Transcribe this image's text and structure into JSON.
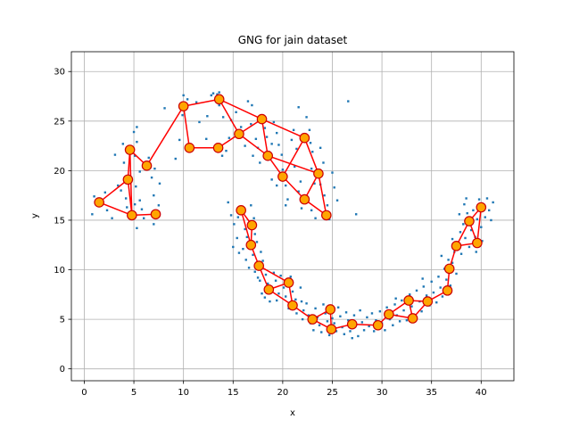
{
  "chart_data": {
    "type": "scatter",
    "title": "GNG for jain dataset",
    "xlabel": "x",
    "ylabel": "y",
    "xlim": [
      -1.3,
      43.3
    ],
    "ylim": [
      -1.2,
      32.0
    ],
    "xticks": [
      0,
      5,
      10,
      15,
      20,
      25,
      30,
      35,
      40
    ],
    "yticks": [
      0,
      5,
      10,
      15,
      20,
      25,
      30
    ],
    "grid": true,
    "colors": {
      "points": "#1f77b4",
      "edges": "#ff0000",
      "nodes_fill": "#ffa500",
      "nodes_edge": "#cc0000",
      "grid": "#b0b0b0"
    },
    "nodes": [
      {
        "id": "A1",
        "x": 1.5,
        "y": 16.8
      },
      {
        "id": "A2",
        "x": 4.6,
        "y": 22.1
      },
      {
        "id": "A3",
        "x": 4.4,
        "y": 19.1
      },
      {
        "id": "A4",
        "x": 6.3,
        "y": 20.5
      },
      {
        "id": "A5",
        "x": 4.8,
        "y": 15.5
      },
      {
        "id": "A6",
        "x": 7.2,
        "y": 15.6
      },
      {
        "id": "B1",
        "x": 10.0,
        "y": 26.5
      },
      {
        "id": "B2",
        "x": 13.6,
        "y": 27.2
      },
      {
        "id": "B3",
        "x": 10.6,
        "y": 22.3
      },
      {
        "id": "B4",
        "x": 13.5,
        "y": 22.3
      },
      {
        "id": "B5",
        "x": 15.6,
        "y": 23.7
      },
      {
        "id": "B6",
        "x": 17.9,
        "y": 25.2
      },
      {
        "id": "B7",
        "x": 22.2,
        "y": 23.3
      },
      {
        "id": "B8",
        "x": 18.5,
        "y": 21.5
      },
      {
        "id": "B9",
        "x": 20.0,
        "y": 19.4
      },
      {
        "id": "B10",
        "x": 23.6,
        "y": 19.7
      },
      {
        "id": "B11",
        "x": 22.2,
        "y": 17.1
      },
      {
        "id": "B12",
        "x": 24.4,
        "y": 15.5
      },
      {
        "id": "C1",
        "x": 15.8,
        "y": 16.0
      },
      {
        "id": "C2",
        "x": 16.9,
        "y": 14.5
      },
      {
        "id": "C3",
        "x": 16.8,
        "y": 12.5
      },
      {
        "id": "C4",
        "x": 17.6,
        "y": 10.4
      },
      {
        "id": "C5",
        "x": 18.6,
        "y": 8.0
      },
      {
        "id": "C6",
        "x": 20.6,
        "y": 8.7
      },
      {
        "id": "C7",
        "x": 21.0,
        "y": 6.4
      },
      {
        "id": "C8",
        "x": 23.0,
        "y": 5.0
      },
      {
        "id": "C9",
        "x": 24.8,
        "y": 6.0
      },
      {
        "id": "C10",
        "x": 24.9,
        "y": 4.0
      },
      {
        "id": "C11",
        "x": 27.0,
        "y": 4.5
      },
      {
        "id": "C12",
        "x": 29.6,
        "y": 4.4
      },
      {
        "id": "C13",
        "x": 30.7,
        "y": 5.5
      },
      {
        "id": "C14",
        "x": 32.7,
        "y": 6.9
      },
      {
        "id": "C15",
        "x": 33.1,
        "y": 5.1
      },
      {
        "id": "C16",
        "x": 34.6,
        "y": 6.8
      },
      {
        "id": "C17",
        "x": 36.6,
        "y": 7.9
      },
      {
        "id": "C18",
        "x": 36.8,
        "y": 10.1
      },
      {
        "id": "C19",
        "x": 37.5,
        "y": 12.4
      },
      {
        "id": "C20",
        "x": 38.8,
        "y": 14.9
      },
      {
        "id": "C21",
        "x": 39.6,
        "y": 12.7
      },
      {
        "id": "C22",
        "x": 40.0,
        "y": 16.3
      }
    ],
    "edges": [
      [
        "A1",
        "A3"
      ],
      [
        "A1",
        "A5"
      ],
      [
        "A3",
        "A2"
      ],
      [
        "A3",
        "A5"
      ],
      [
        "A2",
        "A4"
      ],
      [
        "A2",
        "A5"
      ],
      [
        "A5",
        "A6"
      ],
      [
        "A4",
        "B1"
      ],
      [
        "B1",
        "B3"
      ],
      [
        "B1",
        "B2"
      ],
      [
        "B3",
        "B4"
      ],
      [
        "B4",
        "B5"
      ],
      [
        "B2",
        "B5"
      ],
      [
        "B2",
        "B6"
      ],
      [
        "B5",
        "B6"
      ],
      [
        "B5",
        "B8"
      ],
      [
        "B6",
        "B8"
      ],
      [
        "B6",
        "B7"
      ],
      [
        "B8",
        "B9"
      ],
      [
        "B8",
        "B10"
      ],
      [
        "B7",
        "B9"
      ],
      [
        "B7",
        "B10"
      ],
      [
        "B9",
        "B11"
      ],
      [
        "B10",
        "B11"
      ],
      [
        "B10",
        "B12"
      ],
      [
        "B11",
        "B12"
      ],
      [
        "C1",
        "C2"
      ],
      [
        "C1",
        "C3"
      ],
      [
        "C2",
        "C3"
      ],
      [
        "C3",
        "C4"
      ],
      [
        "C4",
        "C5"
      ],
      [
        "C4",
        "C6"
      ],
      [
        "C5",
        "C6"
      ],
      [
        "C5",
        "C7"
      ],
      [
        "C6",
        "C7"
      ],
      [
        "C7",
        "C8"
      ],
      [
        "C8",
        "C9"
      ],
      [
        "C8",
        "C10"
      ],
      [
        "C9",
        "C10"
      ],
      [
        "C10",
        "C11"
      ],
      [
        "C11",
        "C12"
      ],
      [
        "C12",
        "C13"
      ],
      [
        "C13",
        "C14"
      ],
      [
        "C13",
        "C15"
      ],
      [
        "C14",
        "C15"
      ],
      [
        "C14",
        "C16"
      ],
      [
        "C15",
        "C16"
      ],
      [
        "C16",
        "C17"
      ],
      [
        "C17",
        "C18"
      ],
      [
        "C18",
        "C19"
      ],
      [
        "C19",
        "C20"
      ],
      [
        "C19",
        "C21"
      ],
      [
        "C20",
        "C21"
      ],
      [
        "C20",
        "C22"
      ],
      [
        "C21",
        "C22"
      ]
    ],
    "points": [
      [
        1.0,
        17.4
      ],
      [
        0.8,
        15.6
      ],
      [
        2.3,
        16.0
      ],
      [
        2.1,
        17.8
      ],
      [
        2.8,
        15.2
      ],
      [
        3.4,
        18.5
      ],
      [
        3.1,
        21.6
      ],
      [
        3.9,
        22.7
      ],
      [
        4.0,
        20.8
      ],
      [
        3.7,
        18.0
      ],
      [
        4.2,
        17.2
      ],
      [
        4.3,
        16.3
      ],
      [
        5.0,
        23.9
      ],
      [
        5.3,
        24.4
      ],
      [
        5.3,
        22.9
      ],
      [
        5.1,
        21.5
      ],
      [
        5.6,
        19.9
      ],
      [
        5.2,
        18.4
      ],
      [
        5.6,
        17.0
      ],
      [
        5.8,
        16.1
      ],
      [
        5.1,
        16.6
      ],
      [
        5.3,
        14.2
      ],
      [
        6.0,
        15.2
      ],
      [
        6.5,
        21.3
      ],
      [
        6.8,
        19.3
      ],
      [
        7.0,
        17.5
      ],
      [
        7.0,
        14.6
      ],
      [
        7.5,
        16.5
      ],
      [
        7.1,
        20.2
      ],
      [
        7.6,
        18.7
      ],
      [
        8.1,
        26.3
      ],
      [
        9.2,
        21.2
      ],
      [
        9.6,
        23.1
      ],
      [
        9.9,
        25.6
      ],
      [
        10.0,
        27.6
      ],
      [
        10.4,
        27.2
      ],
      [
        11.6,
        24.9
      ],
      [
        11.3,
        26.9
      ],
      [
        12.4,
        25.5
      ],
      [
        12.3,
        23.2
      ],
      [
        12.8,
        27.6
      ],
      [
        13.0,
        27.8
      ],
      [
        13.4,
        27.7
      ],
      [
        13.6,
        27.9
      ],
      [
        13.6,
        26.6
      ],
      [
        14.0,
        25.4
      ],
      [
        14.3,
        22.0
      ],
      [
        13.9,
        21.5
      ],
      [
        14.8,
        25.1
      ],
      [
        14.6,
        23.3
      ],
      [
        15.3,
        25.9
      ],
      [
        15.8,
        24.4
      ],
      [
        16.2,
        22.5
      ],
      [
        16.5,
        27.0
      ],
      [
        16.9,
        26.6
      ],
      [
        16.8,
        24.7
      ],
      [
        17.3,
        23.2
      ],
      [
        17.5,
        22.3
      ],
      [
        17.0,
        21.5
      ],
      [
        17.7,
        20.8
      ],
      [
        18.2,
        24.3
      ],
      [
        18.4,
        23.4
      ],
      [
        18.9,
        22.7
      ],
      [
        19.1,
        24.9
      ],
      [
        19.4,
        23.8
      ],
      [
        19.6,
        22.6
      ],
      [
        19.9,
        21.6
      ],
      [
        18.9,
        19.1
      ],
      [
        19.4,
        18.5
      ],
      [
        20.0,
        20.1
      ],
      [
        20.3,
        18.5
      ],
      [
        20.5,
        17.1
      ],
      [
        20.3,
        16.5
      ],
      [
        20.9,
        23.1
      ],
      [
        21.1,
        24.1
      ],
      [
        21.4,
        22.2
      ],
      [
        21.2,
        20.4
      ],
      [
        21.8,
        18.9
      ],
      [
        21.6,
        17.9
      ],
      [
        21.9,
        16.2
      ],
      [
        22.4,
        25.4
      ],
      [
        22.7,
        24.1
      ],
      [
        22.8,
        22.8
      ],
      [
        23.0,
        21.9
      ],
      [
        22.9,
        20.2
      ],
      [
        23.2,
        18.7
      ],
      [
        22.9,
        16.0
      ],
      [
        23.3,
        15.2
      ],
      [
        23.8,
        22.3
      ],
      [
        24.1,
        20.8
      ],
      [
        23.8,
        18.6
      ],
      [
        24.2,
        17.5
      ],
      [
        24.5,
        16.5
      ],
      [
        24.7,
        15.1
      ],
      [
        25.0,
        19.8
      ],
      [
        25.2,
        18.3
      ],
      [
        25.5,
        17.0
      ],
      [
        27.4,
        15.6
      ],
      [
        26.6,
        27.0
      ],
      [
        21.6,
        26.4
      ],
      [
        14.5,
        16.8
      ],
      [
        14.8,
        15.5
      ],
      [
        15.1,
        14.6
      ],
      [
        15.4,
        13.2
      ],
      [
        15.0,
        12.3
      ],
      [
        15.6,
        11.7
      ],
      [
        15.5,
        15.3
      ],
      [
        16.1,
        15.8
      ],
      [
        16.2,
        14.1
      ],
      [
        16.4,
        13.3
      ],
      [
        16.0,
        12.1
      ],
      [
        16.3,
        11.0
      ],
      [
        16.6,
        10.2
      ],
      [
        16.8,
        16.5
      ],
      [
        17.1,
        15.2
      ],
      [
        17.2,
        13.6
      ],
      [
        17.4,
        12.8
      ],
      [
        17.0,
        11.5
      ],
      [
        17.2,
        9.8
      ],
      [
        17.5,
        9.2
      ],
      [
        17.8,
        11.8
      ],
      [
        18.0,
        10.9
      ],
      [
        17.7,
        8.9
      ],
      [
        17.9,
        7.6
      ],
      [
        18.3,
        9.5
      ],
      [
        18.5,
        8.6
      ],
      [
        18.2,
        7.2
      ],
      [
        18.7,
        6.8
      ],
      [
        19.1,
        9.7
      ],
      [
        19.3,
        8.9
      ],
      [
        19.6,
        7.6
      ],
      [
        19.4,
        6.9
      ],
      [
        19.8,
        9.4
      ],
      [
        20.1,
        8.2
      ],
      [
        20.3,
        7.3
      ],
      [
        20.6,
        6.1
      ],
      [
        20.8,
        9.3
      ],
      [
        21.0,
        7.8
      ],
      [
        21.3,
        7.0
      ],
      [
        21.4,
        5.6
      ],
      [
        21.8,
        8.2
      ],
      [
        21.9,
        6.8
      ],
      [
        22.1,
        5.9
      ],
      [
        22.0,
        5.0
      ],
      [
        22.4,
        6.6
      ],
      [
        22.6,
        5.4
      ],
      [
        22.8,
        4.6
      ],
      [
        23.1,
        3.9
      ],
      [
        23.3,
        6.1
      ],
      [
        23.5,
        5.2
      ],
      [
        23.7,
        4.4
      ],
      [
        23.9,
        3.7
      ],
      [
        24.1,
        6.5
      ],
      [
        24.3,
        5.6
      ],
      [
        24.5,
        4.8
      ],
      [
        24.7,
        3.4
      ],
      [
        25.0,
        5.1
      ],
      [
        25.2,
        4.6
      ],
      [
        25.4,
        3.8
      ],
      [
        25.6,
        6.2
      ],
      [
        25.8,
        5.3
      ],
      [
        26.0,
        4.2
      ],
      [
        26.2,
        3.5
      ],
      [
        26.4,
        5.7
      ],
      [
        26.6,
        4.9
      ],
      [
        26.8,
        3.8
      ],
      [
        27.0,
        3.1
      ],
      [
        27.2,
        5.4
      ],
      [
        27.4,
        4.5
      ],
      [
        27.6,
        3.3
      ],
      [
        27.8,
        5.9
      ],
      [
        28.0,
        4.7
      ],
      [
        28.2,
        3.9
      ],
      [
        28.5,
        5.2
      ],
      [
        28.7,
        4.3
      ],
      [
        29.0,
        5.6
      ],
      [
        29.2,
        3.8
      ],
      [
        29.4,
        4.9
      ],
      [
        29.8,
        5.8
      ],
      [
        30.0,
        4.6
      ],
      [
        30.3,
        3.9
      ],
      [
        30.5,
        6.2
      ],
      [
        30.8,
        5.0
      ],
      [
        31.1,
        4.4
      ],
      [
        31.3,
        6.5
      ],
      [
        31.5,
        5.4
      ],
      [
        31.8,
        4.8
      ],
      [
        32.0,
        6.9
      ],
      [
        32.2,
        5.9
      ],
      [
        32.5,
        4.9
      ],
      [
        32.8,
        7.5
      ],
      [
        33.0,
        6.3
      ],
      [
        33.3,
        5.4
      ],
      [
        33.5,
        7.9
      ],
      [
        33.8,
        6.8
      ],
      [
        34.0,
        5.8
      ],
      [
        34.2,
        8.3
      ],
      [
        34.5,
        7.4
      ],
      [
        34.8,
        6.4
      ],
      [
        35.0,
        8.8
      ],
      [
        35.2,
        7.7
      ],
      [
        35.5,
        6.7
      ],
      [
        35.7,
        9.3
      ],
      [
        35.9,
        8.2
      ],
      [
        36.1,
        7.3
      ],
      [
        36.3,
        10.1
      ],
      [
        36.5,
        9.0
      ],
      [
        36.7,
        11.0
      ],
      [
        36.9,
        8.4
      ],
      [
        37.1,
        10.7
      ],
      [
        37.3,
        11.8
      ],
      [
        37.1,
        13.1
      ],
      [
        37.5,
        9.6
      ],
      [
        37.7,
        12.6
      ],
      [
        37.9,
        13.8
      ],
      [
        38.0,
        11.6
      ],
      [
        38.2,
        14.6
      ],
      [
        38.4,
        13.2
      ],
      [
        38.6,
        15.7
      ],
      [
        38.3,
        16.6
      ],
      [
        38.8,
        12.3
      ],
      [
        39.0,
        14.0
      ],
      [
        39.2,
        16.0
      ],
      [
        39.4,
        13.3
      ],
      [
        39.6,
        15.1
      ],
      [
        39.8,
        17.1
      ],
      [
        40.0,
        14.3
      ],
      [
        40.2,
        16.6
      ],
      [
        40.4,
        15.3
      ],
      [
        40.6,
        17.2
      ],
      [
        40.8,
        16.0
      ],
      [
        41.0,
        15.0
      ],
      [
        41.2,
        16.8
      ],
      [
        40.1,
        12.9
      ],
      [
        39.5,
        11.8
      ],
      [
        38.5,
        17.2
      ],
      [
        37.8,
        15.6
      ],
      [
        36.0,
        11.4
      ],
      [
        34.1,
        9.1
      ],
      [
        31.4,
        7.1
      ]
    ]
  }
}
